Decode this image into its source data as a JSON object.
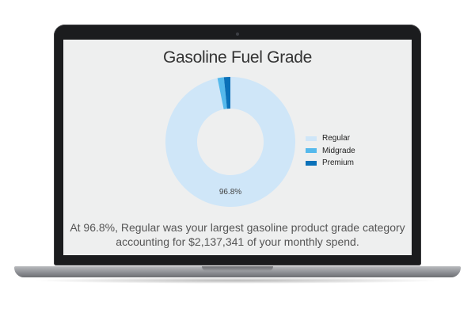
{
  "chart_data": {
    "type": "pie",
    "title": "Gasoline Fuel Grade",
    "categories": [
      "Regular",
      "Midgrade",
      "Premium"
    ],
    "values": [
      96.8,
      1.6,
      1.6
    ],
    "colors": [
      "#cfe6f8",
      "#55b9ec",
      "#0a71b9"
    ],
    "data_labels": [
      "96.8%"
    ],
    "legend_position": "right"
  },
  "caption_line1": "At 96.8%, Regular was your largest gasoline product grade category",
  "caption_line2": "accounting for $2,137,341 of your monthly spend."
}
